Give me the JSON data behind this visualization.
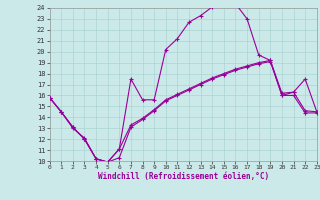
{
  "xlabel": "Windchill (Refroidissement éolien,°C)",
  "xlim": [
    0,
    23
  ],
  "ylim": [
    10,
    24
  ],
  "xticks": [
    0,
    1,
    2,
    3,
    4,
    5,
    6,
    7,
    8,
    9,
    10,
    11,
    12,
    13,
    14,
    15,
    16,
    17,
    18,
    19,
    20,
    21,
    22,
    23
  ],
  "yticks": [
    10,
    11,
    12,
    13,
    14,
    15,
    16,
    17,
    18,
    19,
    20,
    21,
    22,
    23,
    24
  ],
  "bg_color": "#cce9e9",
  "grid_color": "#aad4d4",
  "line_color": "#990099",
  "line1_x": [
    0,
    1,
    2,
    3,
    4,
    5,
    6,
    7,
    8,
    9,
    10,
    11,
    12,
    13,
    14,
    15,
    16,
    17,
    18,
    19,
    20,
    21,
    22,
    23
  ],
  "line1_y": [
    15.8,
    14.5,
    13.0,
    12.1,
    10.2,
    9.9,
    11.1,
    17.5,
    15.6,
    15.6,
    20.2,
    21.2,
    22.7,
    23.3,
    24.1,
    24.4,
    24.4,
    23.0,
    19.7,
    19.2,
    16.0,
    16.3,
    17.5,
    14.5
  ],
  "line2_x": [
    0,
    1,
    2,
    3,
    4,
    5,
    6,
    7,
    8,
    9,
    10,
    11,
    12,
    13,
    14,
    15,
    16,
    17,
    18,
    19,
    20,
    21,
    22,
    23
  ],
  "line2_y": [
    15.8,
    14.5,
    13.1,
    12.0,
    10.2,
    9.9,
    10.3,
    13.1,
    13.8,
    14.6,
    15.5,
    16.0,
    16.5,
    17.0,
    17.5,
    17.9,
    18.3,
    18.6,
    18.9,
    19.1,
    16.0,
    16.0,
    14.4,
    14.4
  ],
  "line3_x": [
    0,
    1,
    2,
    3,
    4,
    5,
    6,
    7,
    8,
    9,
    10,
    11,
    12,
    13,
    14,
    15,
    16,
    17,
    18,
    19,
    20,
    21,
    22,
    23
  ],
  "line3_y": [
    15.8,
    14.5,
    13.1,
    12.0,
    10.2,
    9.9,
    11.1,
    13.3,
    13.9,
    14.7,
    15.6,
    16.1,
    16.6,
    17.1,
    17.6,
    18.0,
    18.4,
    18.7,
    19.0,
    19.2,
    16.2,
    16.3,
    14.6,
    14.5
  ]
}
